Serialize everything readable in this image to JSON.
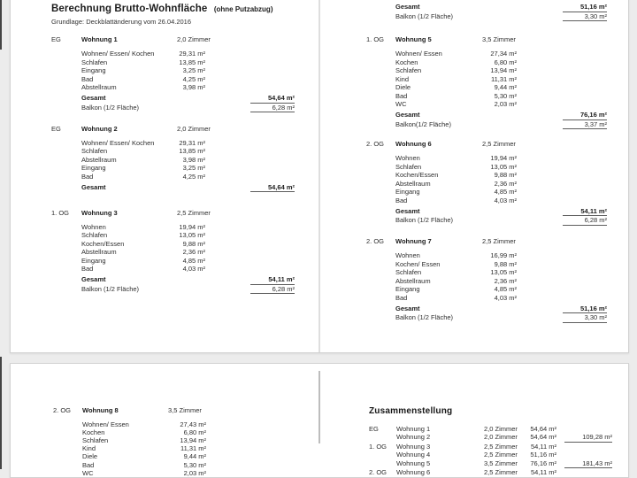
{
  "viewer": {
    "colors": {
      "background": "#ececec",
      "page_background": "#ffffff",
      "text": "#2e2e2e",
      "rule": "#5c5c5c"
    }
  },
  "document": {
    "title": "Berechnung Brutto-Wohnfläche",
    "title_note": "(ohne Putzabzug)",
    "subtitle": "Grundlage: Deckblattänderung vom 26.04.2016"
  },
  "page1_left": [
    {
      "floor": "EG",
      "unit": "Wohnung 1",
      "zimmer": "2,0 Zimmer",
      "rooms": [
        {
          "label": "Wohnen/ Essen/ Kochen",
          "value": "29,31 m²"
        },
        {
          "label": "Schlafen",
          "value": "13,85 m²"
        },
        {
          "label": "Eingang",
          "value": "3,25 m²"
        },
        {
          "label": "Bad",
          "value": "4,25 m²"
        },
        {
          "label": "Abstellraum",
          "value": "3,98 m²"
        }
      ],
      "total": {
        "label": "Gesamt",
        "value": "54,64 m²"
      },
      "balkon": {
        "label": "Balkon (1/2 Fläche)",
        "value": "6,28 m²"
      }
    },
    {
      "floor": "EG",
      "unit": "Wohnung 2",
      "zimmer": "2,0 Zimmer",
      "rooms": [
        {
          "label": "Wohnen/ Essen/ Kochen",
          "value": "29,31 m²"
        },
        {
          "label": "Schlafen",
          "value": "13,85 m²"
        },
        {
          "label": "Abstellraum",
          "value": "3,98 m²"
        },
        {
          "label": "Eingang",
          "value": "3,25 m²"
        },
        {
          "label": "Bad",
          "value": "4,25 m²"
        }
      ],
      "total": {
        "label": "Gesamt",
        "value": "54,64 m²"
      }
    },
    {
      "floor": "1. OG",
      "unit": "Wohnung 3",
      "zimmer": "2,5 Zimmer",
      "rooms": [
        {
          "label": "Wohnen",
          "value": "19,94 m²"
        },
        {
          "label": "Schlafen",
          "value": "13,05 m²"
        },
        {
          "label": "Kochen/Essen",
          "value": "9,88 m²"
        },
        {
          "label": "Abstellraum",
          "value": "2,36 m²"
        },
        {
          "label": "Eingang",
          "value": "4,85 m²"
        },
        {
          "label": "Bad",
          "value": "4,03 m²"
        }
      ],
      "total": {
        "label": "Gesamt",
        "value": "54,11 m²"
      },
      "balkon": {
        "label": "Balkon (1/2 Fläche)",
        "value": "6,28 m²"
      }
    }
  ],
  "page1_right": [
    {
      "total": {
        "label": "Gesamt",
        "value": "51,16 m²"
      },
      "balkon": {
        "label": "Balkon (1/2 Fläche)",
        "value": "3,30 m²"
      }
    },
    {
      "floor": "1. OG",
      "unit": "Wohnung 5",
      "zimmer": "3,5 Zimmer",
      "rooms": [
        {
          "label": "Wohnen/ Essen",
          "value": "27,34 m²"
        },
        {
          "label": "Kochen",
          "value": "6,80 m²"
        },
        {
          "label": "Schlafen",
          "value": "13,94 m²"
        },
        {
          "label": "Kind",
          "value": "11,31 m²"
        },
        {
          "label": "Diele",
          "value": "9,44 m²"
        },
        {
          "label": "Bad",
          "value": "5,30 m²"
        },
        {
          "label": "WC",
          "value": "2,03 m²"
        }
      ],
      "total": {
        "label": "Gesamt",
        "value": "76,16 m²"
      },
      "balkon": {
        "label": "Balkon(1/2 Fläche)",
        "value": "3,37 m²"
      }
    },
    {
      "floor": "2. OG",
      "unit": "Wohnung 6",
      "zimmer": "2,5 Zimmer",
      "rooms": [
        {
          "label": "Wohnen",
          "value": "19,94 m²"
        },
        {
          "label": "Schlafen",
          "value": "13,05 m²"
        },
        {
          "label": "Kochen/Essen",
          "value": "9,88 m²"
        },
        {
          "label": "Abstellraum",
          "value": "2,36 m²"
        },
        {
          "label": "Eingang",
          "value": "4,85 m²"
        },
        {
          "label": "Bad",
          "value": "4,03 m²"
        }
      ],
      "total": {
        "label": "Gesamt",
        "value": "54,11 m²"
      },
      "balkon": {
        "label": "Balkon (1/2 Fläche)",
        "value": "6,28 m²"
      }
    },
    {
      "floor": "2. OG",
      "unit": "Wohnung 7",
      "zimmer": "2,5 Zimmer",
      "rooms": [
        {
          "label": "Wohnen",
          "value": "16,99 m²"
        },
        {
          "label": "Kochen/ Essen",
          "value": "9,88 m²"
        },
        {
          "label": "Schlafen",
          "value": "13,05 m²"
        },
        {
          "label": "Abstellraum",
          "value": "2,36 m²"
        },
        {
          "label": "Eingang",
          "value": "4,85 m²"
        },
        {
          "label": "Bad",
          "value": "4,03 m²"
        }
      ],
      "total": {
        "label": "Gesamt",
        "value": "51,16 m²"
      },
      "balkon": {
        "label": "Balkon (1/2 Fläche)",
        "value": "3,30 m²"
      }
    }
  ],
  "page2_left": [
    {
      "floor": "2. OG",
      "unit": "Wohnung 8",
      "zimmer": "3,5 Zimmer",
      "rooms": [
        {
          "label": "Wohnen/ Essen",
          "value": "27,43 m²"
        },
        {
          "label": "Kochen",
          "value": "6,80 m²"
        },
        {
          "label": "Schlafen",
          "value": "13,94 m²"
        },
        {
          "label": "Kind",
          "value": "11,31 m²"
        },
        {
          "label": "Diele",
          "value": "9,44 m²"
        },
        {
          "label": "Bad",
          "value": "5,30 m²"
        },
        {
          "label": "WC",
          "value": "2,03 m²"
        }
      ]
    }
  ],
  "summary": {
    "title": "Zusammenstellung",
    "rows": [
      {
        "floor": "EG",
        "unit": "Wohnung 1",
        "zimmer": "2,0 Zimmer",
        "area": "54,64 m²",
        "sum": ""
      },
      {
        "floor": "",
        "unit": "Wohnung 2",
        "zimmer": "2,0 Zimmer",
        "area": "54,64 m²",
        "sum": "109,28 m²"
      },
      {
        "floor": "1. OG",
        "unit": "Wohnung 3",
        "zimmer": "2,5 Zimmer",
        "area": "54,11 m²",
        "sum": ""
      },
      {
        "floor": "",
        "unit": "Wohnung 4",
        "zimmer": "2,5 Zimmer",
        "area": "51,16 m²",
        "sum": ""
      },
      {
        "floor": "",
        "unit": "Wohnung 5",
        "zimmer": "3,5 Zimmer",
        "area": "76,16 m²",
        "sum": "181,43 m²"
      },
      {
        "floor": "2. OG",
        "unit": "Wohnung 6",
        "zimmer": "2,5 Zimmer",
        "area": "54,11 m²",
        "sum": ""
      }
    ]
  }
}
